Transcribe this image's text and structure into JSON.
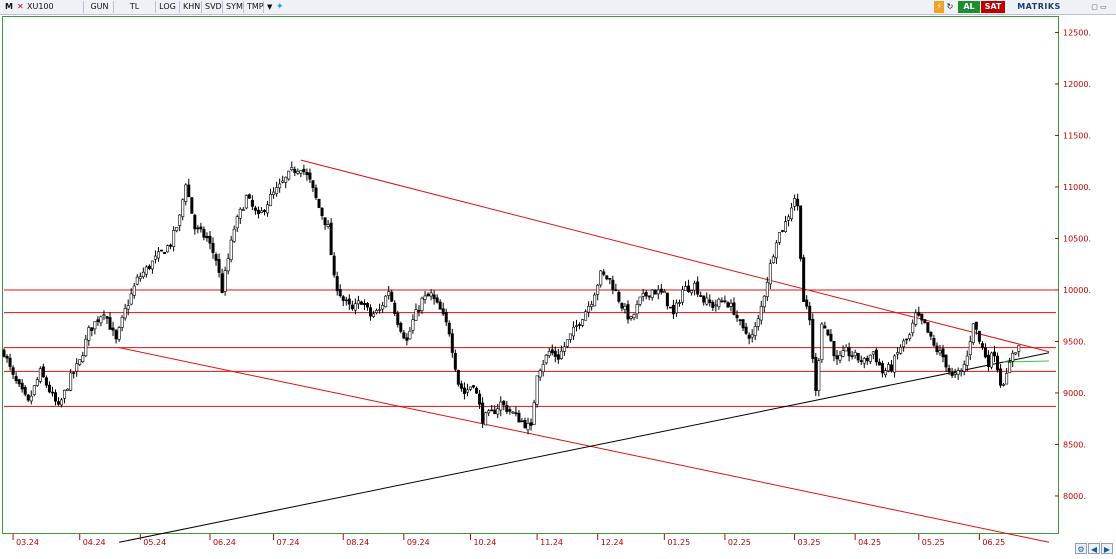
{
  "toolbar": {
    "m_label": "M",
    "x_label": "✕",
    "symbol": "XU100",
    "period": "GUN",
    "currency": "TL",
    "log": "LOG",
    "khn": "KHN",
    "svd": "SVD",
    "sym": "SYM",
    "tmp": "TMP",
    "dropdown_icon": "chevron-down-icon",
    "social_icon": "twitter-icon",
    "buy_label": "AL",
    "sell_label": "SAT",
    "brand": "MATRIKS",
    "colors": {
      "buy": "#1e8e2e",
      "sell": "#c00000",
      "brand": "#1a3e72"
    }
  },
  "chart_data": {
    "type": "candlestick",
    "instrument": "XU100",
    "y_ticks": [
      8000,
      8500,
      9000,
      9500,
      10000,
      10500,
      11000,
      11500,
      12000,
      12500
    ],
    "y_tick_labels": [
      "8000.",
      "8500.",
      "9000.",
      "9500.",
      "10000.",
      "10500.",
      "11000.",
      "11500.",
      "12000.",
      "12500."
    ],
    "ylim": [
      7650,
      12650
    ],
    "x_tick_labels": [
      "03.24",
      "04.24",
      "05.24",
      "06.24",
      "07.24",
      "08.24",
      "09.24",
      "10.24",
      "11.24",
      "12.24",
      "01.25",
      "02.25",
      "03.25",
      "04.25",
      "05.25",
      "06.25"
    ],
    "x_tick_index": [
      3,
      25,
      45,
      68,
      89,
      112,
      132,
      154,
      176,
      196,
      218,
      238,
      261,
      281,
      302,
      322
    ],
    "n_bars": 345,
    "horizontal_levels": [
      10000,
      9780,
      9440,
      9210,
      8870
    ],
    "trend_lines": [
      {
        "from": [
          98,
          11260
        ],
        "to": [
          345,
          9400
        ],
        "color": "red"
      },
      {
        "from": [
          38,
          9440
        ],
        "to": [
          345,
          7550
        ],
        "color": "red"
      },
      {
        "from": [
          38,
          7550
        ],
        "to": [
          345,
          9390
        ],
        "color": "black"
      },
      {
        "from": [
          330,
          9300
        ],
        "to": [
          345,
          9310
        ],
        "color": "green"
      }
    ],
    "anchors": [
      [
        0,
        9400
      ],
      [
        3,
        9150
      ],
      [
        8,
        8900
      ],
      [
        12,
        9200
      ],
      [
        18,
        8850
      ],
      [
        22,
        9150
      ],
      [
        25,
        9300
      ],
      [
        28,
        9600
      ],
      [
        33,
        9800
      ],
      [
        37,
        9500
      ],
      [
        40,
        9800
      ],
      [
        44,
        10100
      ],
      [
        50,
        10300
      ],
      [
        55,
        10450
      ],
      [
        58,
        10700
      ],
      [
        60,
        11050
      ],
      [
        63,
        10600
      ],
      [
        67,
        10500
      ],
      [
        70,
        10300
      ],
      [
        72,
        10000
      ],
      [
        76,
        10600
      ],
      [
        80,
        10900
      ],
      [
        84,
        10700
      ],
      [
        88,
        10900
      ],
      [
        91,
        11000
      ],
      [
        95,
        11150
      ],
      [
        98,
        11200
      ],
      [
        101,
        11050
      ],
      [
        104,
        10800
      ],
      [
        107,
        10600
      ],
      [
        109,
        10100
      ],
      [
        112,
        9900
      ],
      [
        115,
        9800
      ],
      [
        118,
        9900
      ],
      [
        121,
        9750
      ],
      [
        124,
        9800
      ],
      [
        127,
        10000
      ],
      [
        130,
        9700
      ],
      [
        133,
        9500
      ],
      [
        135,
        9700
      ],
      [
        138,
        9900
      ],
      [
        141,
        9950
      ],
      [
        144,
        9800
      ],
      [
        147,
        9600
      ],
      [
        150,
        9100
      ],
      [
        152,
        9000
      ],
      [
        155,
        9100
      ],
      [
        158,
        8750
      ],
      [
        161,
        8800
      ],
      [
        164,
        8900
      ],
      [
        168,
        8800
      ],
      [
        172,
        8700
      ],
      [
        174,
        8650
      ],
      [
        176,
        9200
      ],
      [
        180,
        9400
      ],
      [
        183,
        9350
      ],
      [
        185,
        9450
      ],
      [
        188,
        9600
      ],
      [
        191,
        9750
      ],
      [
        194,
        9900
      ],
      [
        197,
        10150
      ],
      [
        200,
        10100
      ],
      [
        204,
        9850
      ],
      [
        207,
        9700
      ],
      [
        210,
        9900
      ],
      [
        214,
        10000
      ],
      [
        218,
        9950
      ],
      [
        221,
        9750
      ],
      [
        224,
        10000
      ],
      [
        228,
        10050
      ],
      [
        231,
        9900
      ],
      [
        234,
        9850
      ],
      [
        238,
        9900
      ],
      [
        241,
        9800
      ],
      [
        244,
        9600
      ],
      [
        247,
        9550
      ],
      [
        249,
        9700
      ],
      [
        252,
        10100
      ],
      [
        255,
        10500
      ],
      [
        258,
        10650
      ],
      [
        261,
        10900
      ],
      [
        262,
        10800
      ],
      [
        264,
        9900
      ],
      [
        266,
        9700
      ],
      [
        268,
        9000
      ],
      [
        270,
        9700
      ],
      [
        273,
        9500
      ],
      [
        275,
        9300
      ],
      [
        278,
        9400
      ],
      [
        281,
        9350
      ],
      [
        284,
        9300
      ],
      [
        287,
        9400
      ],
      [
        290,
        9200
      ],
      [
        293,
        9250
      ],
      [
        296,
        9450
      ],
      [
        299,
        9550
      ],
      [
        301,
        9750
      ],
      [
        304,
        9650
      ],
      [
        307,
        9450
      ],
      [
        310,
        9350
      ],
      [
        313,
        9150
      ],
      [
        316,
        9200
      ],
      [
        318,
        9350
      ],
      [
        320,
        9700
      ],
      [
        322,
        9500
      ],
      [
        325,
        9300
      ],
      [
        327,
        9400
      ],
      [
        329,
        9100
      ],
      [
        331,
        9150
      ],
      [
        333,
        9400
      ],
      [
        335,
        9450
      ]
    ]
  }
}
